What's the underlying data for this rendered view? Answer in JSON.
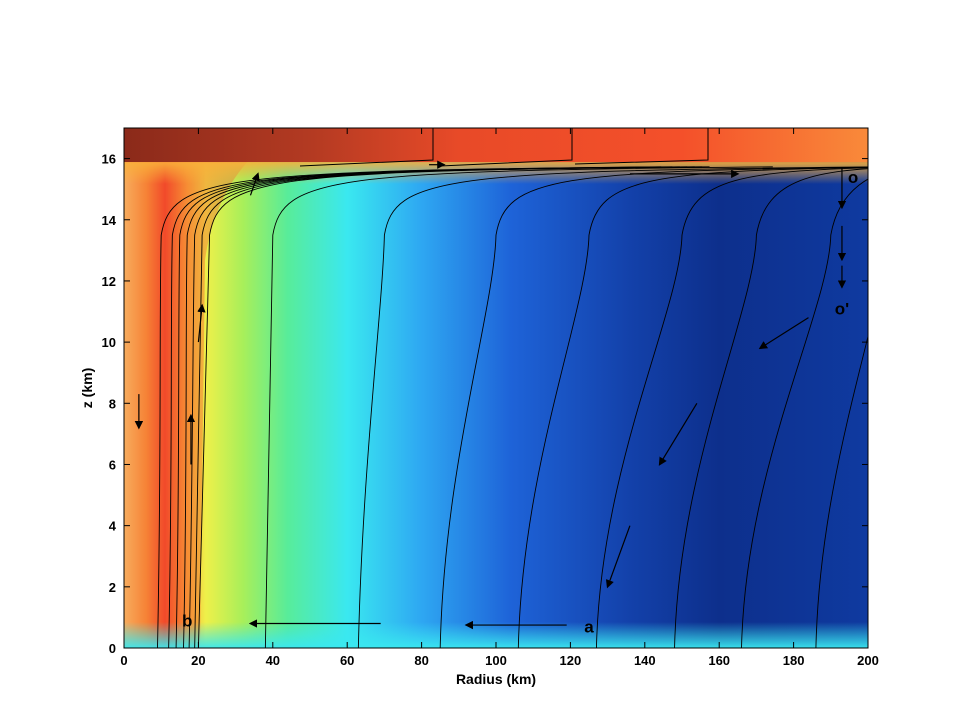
{
  "chart_data": {
    "type": "heatmap",
    "title": "",
    "xlabel": "Radius (km)",
    "ylabel": "z (km)",
    "xlim": [
      0,
      200
    ],
    "ylim": [
      0,
      17
    ],
    "xticks": [
      0,
      20,
      40,
      60,
      80,
      100,
      120,
      140,
      160,
      180,
      200
    ],
    "yticks": [
      0,
      2,
      4,
      6,
      8,
      10,
      12,
      14,
      16
    ],
    "grid": false,
    "colormap": "jet",
    "colors": {
      "hot": "#8b2a1a",
      "warm": "#f24a2a",
      "mid": "#3ae8f0",
      "cold": "#0d2f8c"
    },
    "contours": [
      {
        "x_bottom": 9,
        "x_top_turn": 10
      },
      {
        "x_bottom": 12,
        "x_top_turn": 13
      },
      {
        "x_bottom": 14,
        "x_top_turn": 15
      },
      {
        "x_bottom": 16,
        "x_top_turn": 17
      },
      {
        "x_bottom": 17.5,
        "x_top_turn": 19
      },
      {
        "x_bottom": 19,
        "x_top_turn": 21
      },
      {
        "x_bottom": 20,
        "x_top_turn": 23
      },
      {
        "x_bottom": 38,
        "x_top_turn": 40
      },
      {
        "x_bottom": 63,
        "x_top_turn": 70
      },
      {
        "x_bottom": 85,
        "x_top_turn": 100
      },
      {
        "x_bottom": 106,
        "x_top_turn": 125
      },
      {
        "x_bottom": 127,
        "x_top_turn": 150
      },
      {
        "x_bottom": 148,
        "x_top_turn": 170
      },
      {
        "x_bottom": 166,
        "x_top_turn": 190
      },
      {
        "x_bottom": 186,
        "x_top_turn": 205
      }
    ],
    "flow_arrows": [
      {
        "from": [
          69,
          0.8
        ],
        "to": [
          34,
          0.8
        ]
      },
      {
        "from": [
          119,
          0.75
        ],
        "to": [
          92,
          0.75
        ]
      },
      {
        "from": [
          136,
          15.5
        ],
        "to": [
          165,
          15.5
        ]
      },
      {
        "from": [
          193,
          15.7
        ],
        "to": [
          193,
          14.4
        ]
      },
      {
        "from": [
          193,
          13.8
        ],
        "to": [
          193,
          12.7
        ]
      },
      {
        "from": [
          193,
          12.5
        ],
        "to": [
          193,
          11.8
        ]
      },
      {
        "from": [
          184,
          10.8
        ],
        "to": [
          171,
          9.8
        ]
      },
      {
        "from": [
          154,
          8.0
        ],
        "to": [
          144,
          6.0
        ]
      },
      {
        "from": [
          136,
          4.0
        ],
        "to": [
          130,
          2.0
        ]
      },
      {
        "from": [
          18,
          6.0
        ],
        "to": [
          18,
          7.6
        ]
      },
      {
        "from": [
          20,
          10.0
        ],
        "to": [
          21,
          11.2
        ]
      },
      {
        "from": [
          34,
          14.8
        ],
        "to": [
          36,
          15.5
        ]
      },
      {
        "from": [
          82,
          15.8
        ],
        "to": [
          86,
          15.8
        ]
      },
      {
        "from": [
          4,
          8.3
        ],
        "to": [
          4,
          7.2
        ]
      }
    ],
    "annotations": [
      {
        "text": "o",
        "x": 196,
        "y": 15.4
      },
      {
        "text": "o'",
        "x": 193,
        "y": 11.1
      },
      {
        "text": "a",
        "x": 125,
        "y": 0.7
      },
      {
        "text": "b",
        "x": 17,
        "y": 0.9
      }
    ]
  }
}
